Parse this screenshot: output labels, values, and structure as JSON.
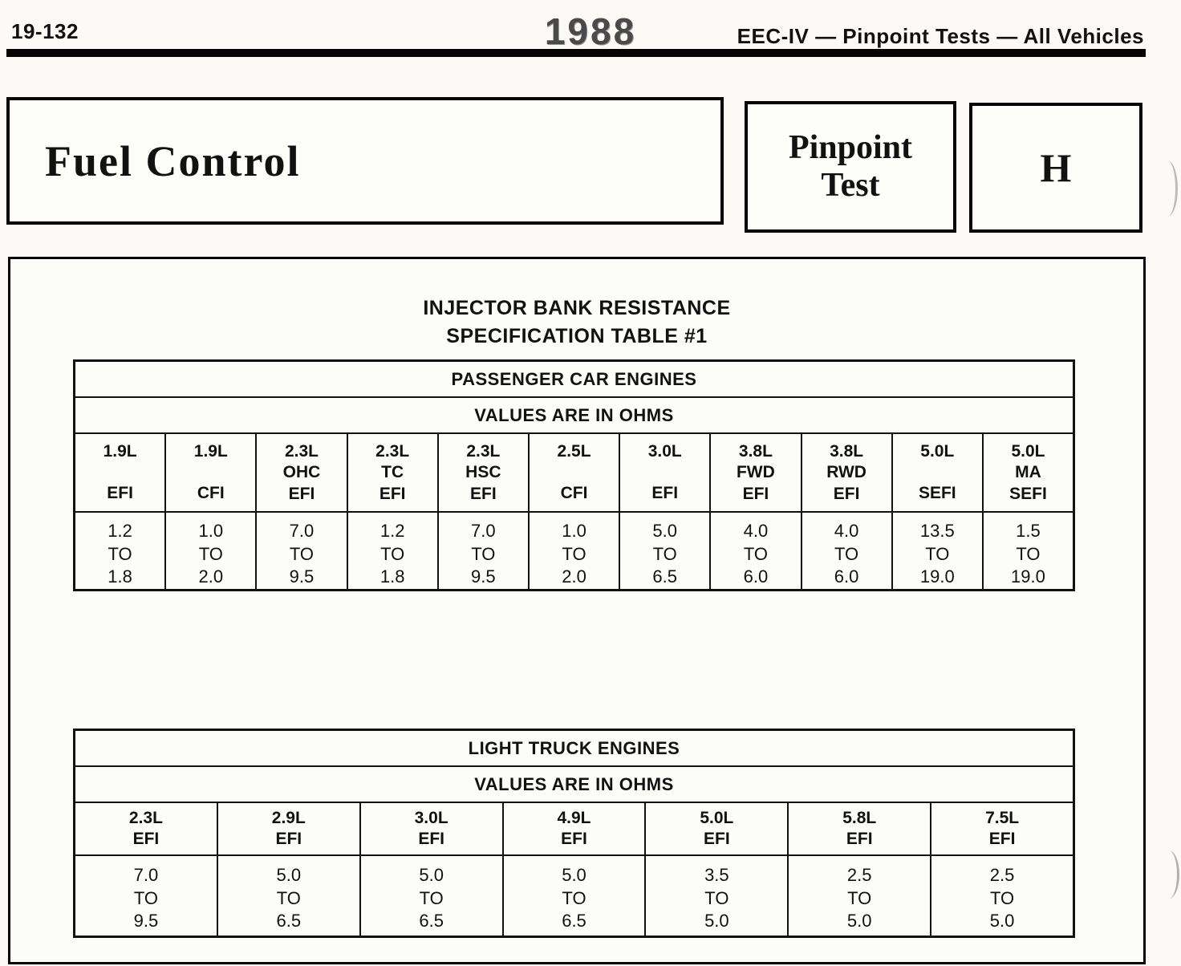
{
  "page_header": {
    "page_number": "19-132",
    "year": "1988",
    "section_title": "EEC-IV — Pinpoint Tests — All Vehicles"
  },
  "title_boxes": {
    "fuel_control": "Fuel Control",
    "pinpoint_line1": "Pinpoint",
    "pinpoint_line2": "Test",
    "test_letter": "H"
  },
  "sheet_title": {
    "line1": "INJECTOR BANK RESISTANCE",
    "line2": "SPECIFICATION TABLE #1"
  },
  "passenger_table": {
    "title": "PASSENGER CAR ENGINES",
    "subtitle": "VALUES ARE IN OHMS",
    "columns": [
      {
        "header": [
          "1.9L",
          "EFI"
        ],
        "values": [
          "1.2",
          "TO",
          "1.8"
        ]
      },
      {
        "header": [
          "1.9L",
          "CFI"
        ],
        "values": [
          "1.0",
          "TO",
          "2.0"
        ]
      },
      {
        "header": [
          "2.3L",
          "OHC",
          "EFI"
        ],
        "values": [
          "7.0",
          "TO",
          "9.5"
        ]
      },
      {
        "header": [
          "2.3L",
          "TC",
          "EFI"
        ],
        "values": [
          "1.2",
          "TO",
          "1.8"
        ]
      },
      {
        "header": [
          "2.3L",
          "HSC",
          "EFI"
        ],
        "values": [
          "7.0",
          "TO",
          "9.5"
        ]
      },
      {
        "header": [
          "2.5L",
          "CFI"
        ],
        "values": [
          "1.0",
          "TO",
          "2.0"
        ]
      },
      {
        "header": [
          "3.0L",
          "EFI"
        ],
        "values": [
          "5.0",
          "TO",
          "6.5"
        ]
      },
      {
        "header": [
          "3.8L",
          "FWD",
          "EFI"
        ],
        "values": [
          "4.0",
          "TO",
          "6.0"
        ]
      },
      {
        "header": [
          "3.8L",
          "RWD",
          "EFI"
        ],
        "values": [
          "4.0",
          "TO",
          "6.0"
        ]
      },
      {
        "header": [
          "5.0L",
          "SEFI"
        ],
        "values": [
          "13.5",
          "TO",
          "19.0"
        ]
      },
      {
        "header": [
          "5.0L",
          "MA",
          "SEFI"
        ],
        "values": [
          "1.5",
          "TO",
          "19.0"
        ]
      }
    ]
  },
  "truck_table": {
    "title": "LIGHT TRUCK ENGINES",
    "subtitle": "VALUES ARE IN OHMS",
    "columns": [
      {
        "header": [
          "2.3L",
          "EFI"
        ],
        "values": [
          "7.0",
          "TO",
          "9.5"
        ]
      },
      {
        "header": [
          "2.9L",
          "EFI"
        ],
        "values": [
          "5.0",
          "TO",
          "6.5"
        ]
      },
      {
        "header": [
          "3.0L",
          "EFI"
        ],
        "values": [
          "5.0",
          "TO",
          "6.5"
        ]
      },
      {
        "header": [
          "4.9L",
          "EFI"
        ],
        "values": [
          "5.0",
          "TO",
          "6.5"
        ]
      },
      {
        "header": [
          "5.0L",
          "EFI"
        ],
        "values": [
          "3.5",
          "TO",
          "5.0"
        ]
      },
      {
        "header": [
          "5.8L",
          "EFI"
        ],
        "values": [
          "2.5",
          "TO",
          "5.0"
        ]
      },
      {
        "header": [
          "7.5L",
          "EFI"
        ],
        "values": [
          "2.5",
          "TO",
          "5.0"
        ]
      }
    ]
  }
}
